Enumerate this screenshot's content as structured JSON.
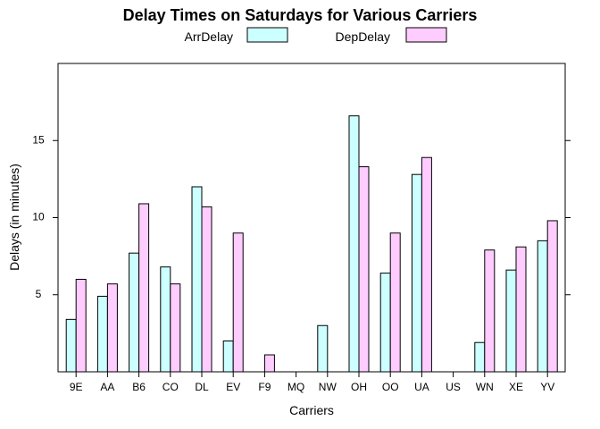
{
  "chart_data": {
    "type": "bar",
    "title": "Delay Times on Saturdays for Various Carriers",
    "xlabel": "Carriers",
    "ylabel": "Delays (in minutes)",
    "categories": [
      "9E",
      "AA",
      "B6",
      "CO",
      "DL",
      "EV",
      "F9",
      "MQ",
      "NW",
      "OH",
      "OO",
      "UA",
      "US",
      "WN",
      "XE",
      "YV"
    ],
    "series": [
      {
        "name": "ArrDelay",
        "color": "#ccffff",
        "values": [
          3.4,
          4.9,
          7.7,
          6.8,
          12.0,
          2.0,
          0.0,
          0.0,
          3.0,
          16.6,
          6.4,
          12.8,
          0.0,
          1.9,
          6.6,
          8.5
        ]
      },
      {
        "name": "DepDelay",
        "color": "#ffccff",
        "values": [
          6.0,
          5.7,
          10.9,
          5.7,
          10.7,
          9.0,
          1.1,
          0.0,
          0.0,
          13.3,
          9.0,
          13.9,
          0.0,
          7.9,
          8.1,
          9.8
        ]
      }
    ],
    "yticks": [
      5,
      10,
      15
    ],
    "ylim": [
      0,
      20
    ],
    "legend_position": "top-center",
    "grid": false
  }
}
